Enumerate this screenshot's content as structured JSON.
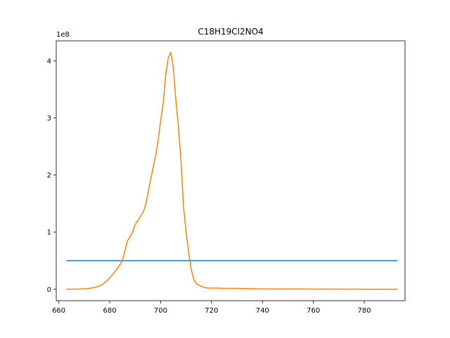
{
  "chart_data": {
    "type": "line",
    "title": "C18H19Cl2NO4",
    "xlabel": "",
    "ylabel": "",
    "xlim": [
      659,
      796
    ],
    "ylim": [
      -0.2,
      4.35
    ],
    "y_offset_label": "1e8",
    "y_scale_exponent": 8,
    "x_ticks": [
      660,
      680,
      700,
      720,
      740,
      760,
      780
    ],
    "y_ticks": [
      0,
      1,
      2,
      3,
      4
    ],
    "grid": false,
    "legend": "none",
    "series": [
      {
        "color": "#1f77b4",
        "x": [
          663,
          793
        ],
        "y": [
          0.5,
          0.5
        ]
      },
      {
        "color": "#ff7f0e",
        "x": [
          663,
          666,
          669,
          672,
          675,
          677,
          679,
          681,
          683,
          685,
          686,
          687,
          688,
          689,
          690,
          691,
          692,
          693,
          694,
          695,
          696,
          697,
          698,
          699,
          700,
          701,
          702,
          703,
          704,
          705,
          706,
          707,
          708,
          709,
          710,
          711,
          712,
          713,
          714,
          715,
          716,
          717,
          718,
          719,
          720,
          722,
          725,
          730,
          735,
          740,
          750,
          760,
          770,
          780,
          793
        ],
        "y": [
          0.0,
          0.002,
          0.005,
          0.015,
          0.04,
          0.08,
          0.15,
          0.25,
          0.36,
          0.5,
          0.68,
          0.85,
          0.92,
          1.0,
          1.13,
          1.2,
          1.27,
          1.34,
          1.45,
          1.68,
          1.9,
          2.12,
          2.33,
          2.6,
          2.95,
          3.25,
          3.75,
          4.05,
          4.15,
          3.88,
          3.3,
          2.85,
          2.25,
          1.45,
          1.0,
          0.65,
          0.35,
          0.18,
          0.1,
          0.07,
          0.05,
          0.035,
          0.025,
          0.02,
          0.02,
          0.02,
          0.015,
          0.015,
          0.01,
          0.005,
          0.005,
          0.003,
          0.002,
          0.001,
          0.0
        ]
      }
    ]
  }
}
